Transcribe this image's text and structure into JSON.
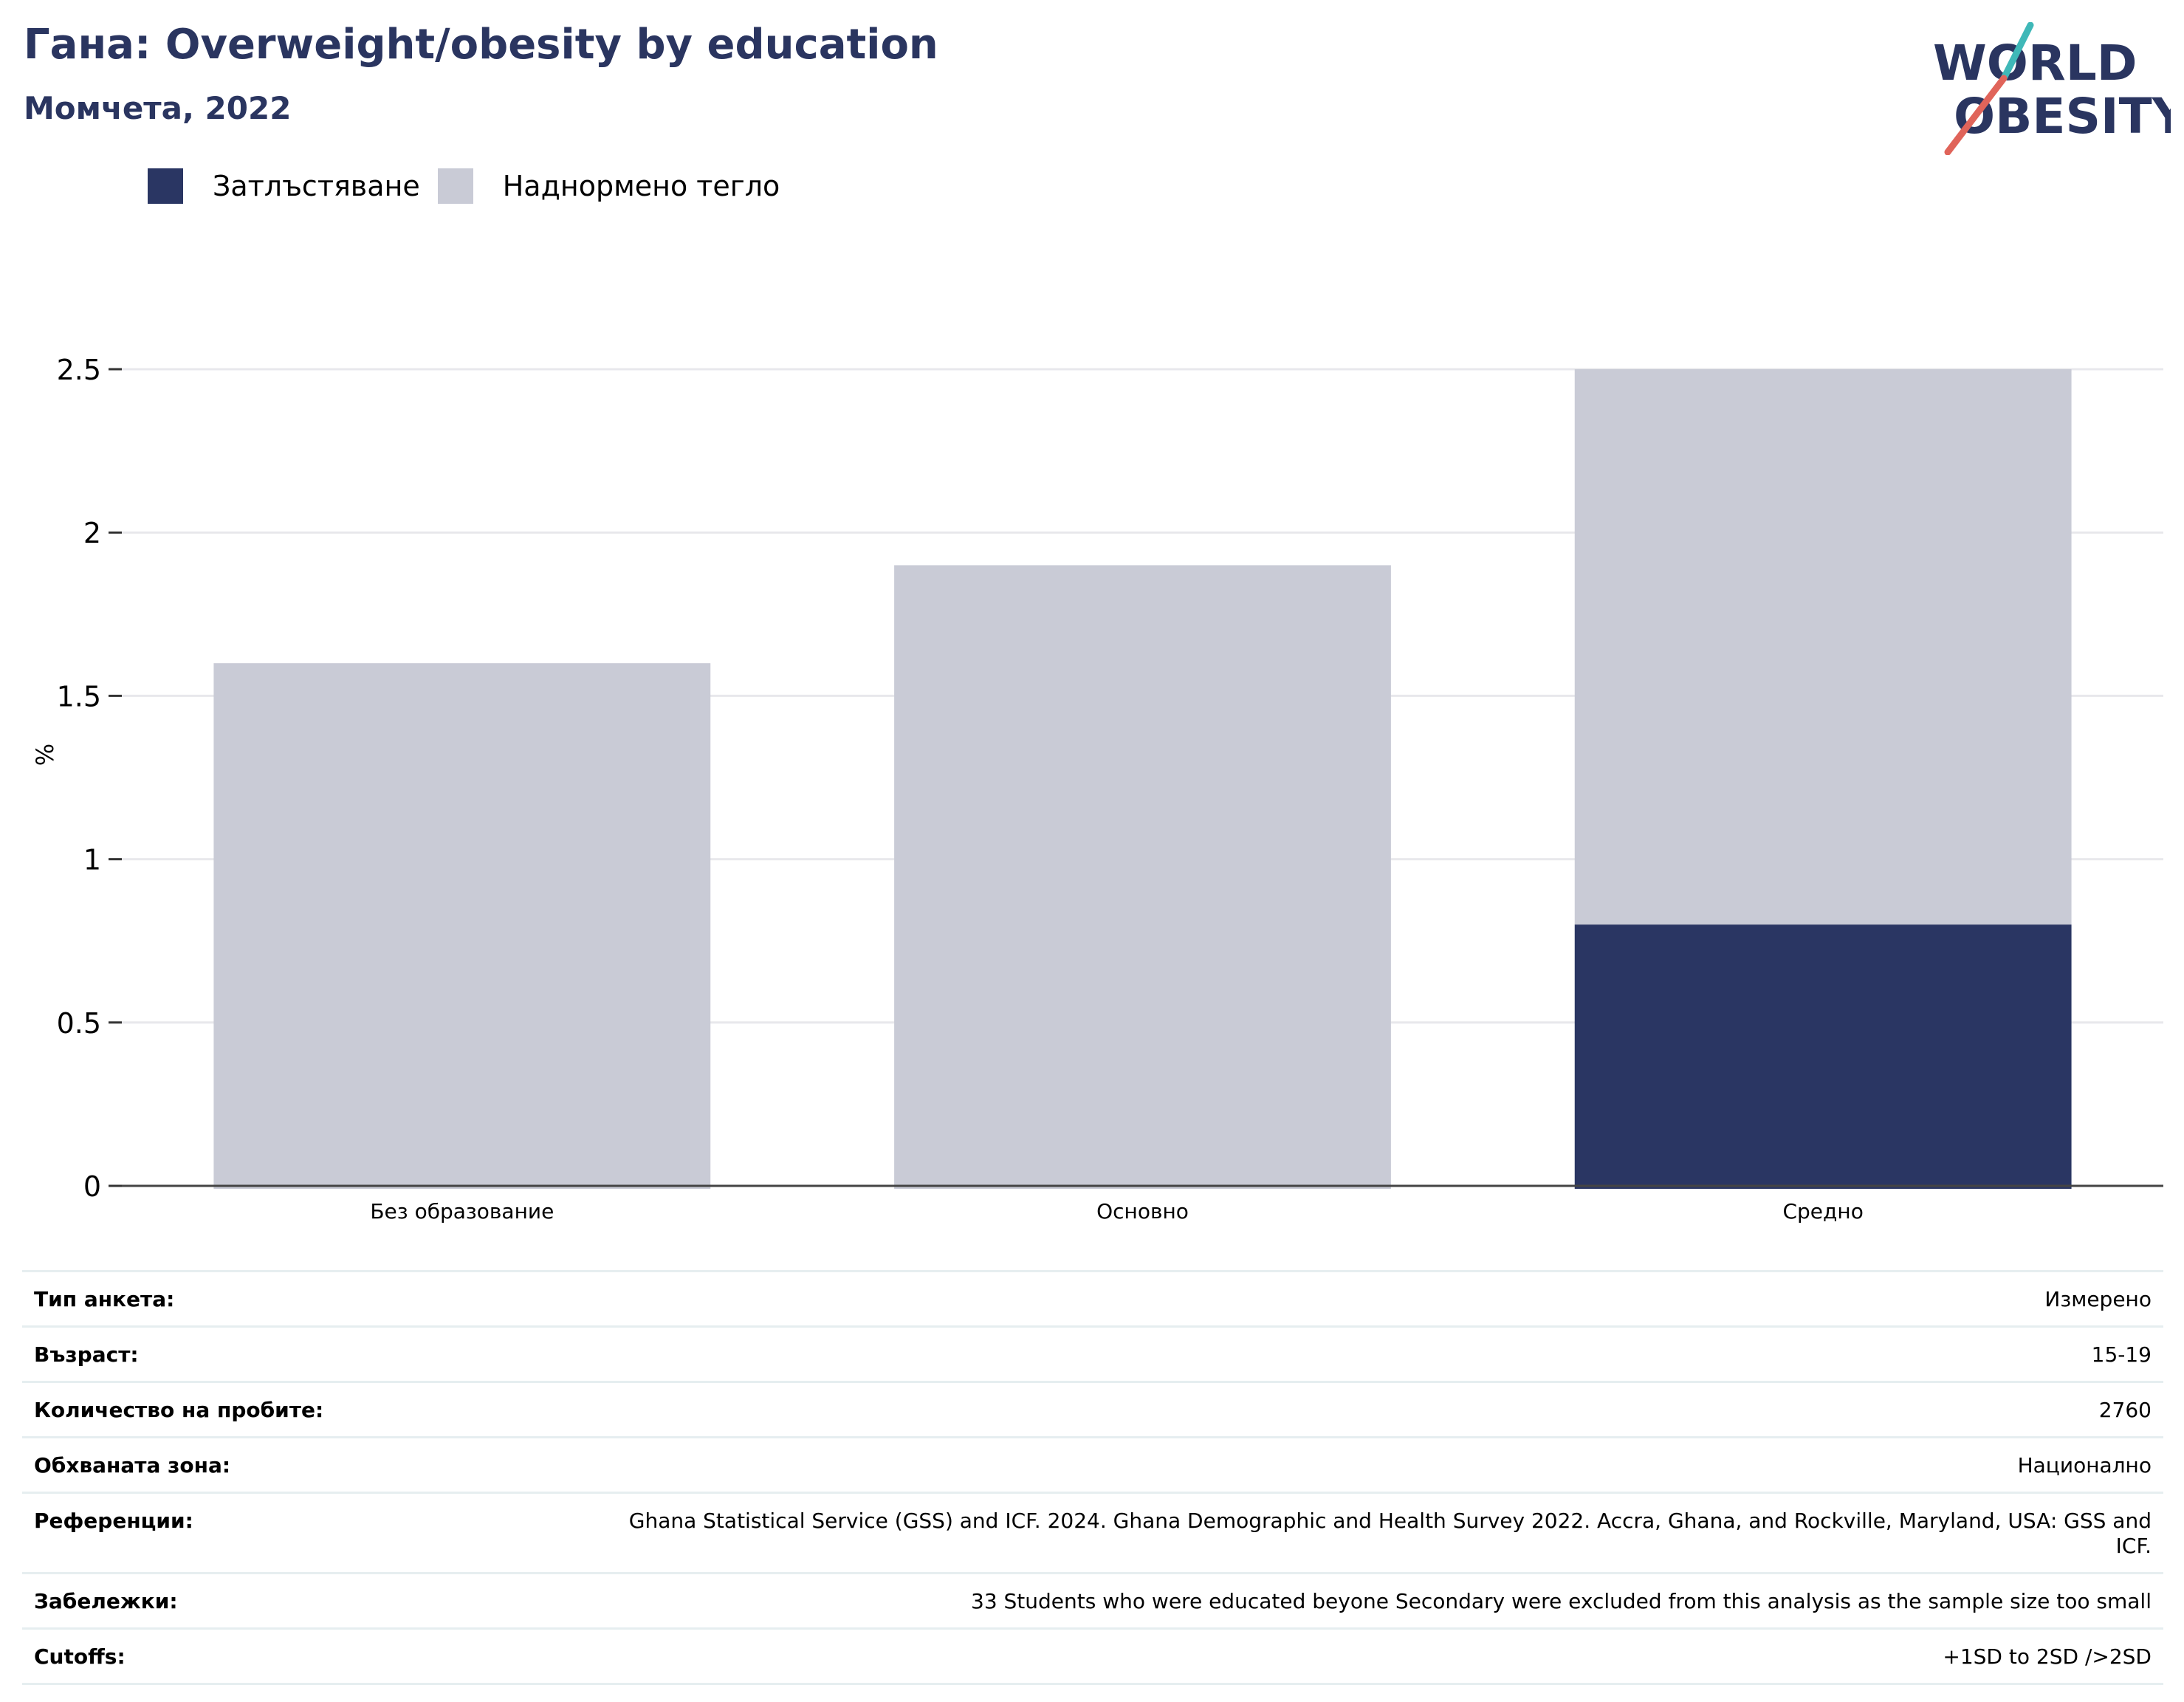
{
  "header": {
    "title": "Гана: Overweight/obesity by education",
    "subtitle": "Момчета, 2022",
    "logo_line1": "WORLD",
    "logo_line2": "OBESITY"
  },
  "colors": {
    "obesity": "#2a3663",
    "overweight": "#c9cbd6",
    "title": "#2a3560",
    "logo_teal": "#3fb8b8",
    "logo_red": "#e0645a"
  },
  "chart_data": {
    "type": "bar",
    "stacked": true,
    "categories": [
      "Без образование",
      "Основно",
      "Средно"
    ],
    "series": [
      {
        "name": "Затлъстяване",
        "values": [
          0,
          0,
          0.8
        ]
      },
      {
        "name": "Наднормено тегло",
        "values": [
          1.6,
          1.9,
          1.7
        ]
      }
    ],
    "ylabel": "%",
    "ylim": [
      0,
      2.5
    ],
    "yticks": [
      {
        "value": 0,
        "label": "0"
      },
      {
        "value": 0.5,
        "label": "0.5"
      },
      {
        "value": 1,
        "label": "1"
      },
      {
        "value": 1.5,
        "label": "1.5"
      },
      {
        "value": 2,
        "label": "2"
      },
      {
        "value": 2.5,
        "label": "2.5"
      }
    ],
    "grid": true,
    "legend_position": "top-left"
  },
  "info": [
    {
      "label": "Тип анкета:",
      "value": "Измерено"
    },
    {
      "label": "Възраст:",
      "value": "15-19"
    },
    {
      "label": "Количество на пробите:",
      "value": "2760"
    },
    {
      "label": "Обхваната зона:",
      "value": "Национално"
    },
    {
      "label": "Референции:",
      "value": "Ghana Statistical Service (GSS) and ICF. 2024. Ghana Demographic and Health Survey 2022. Accra, Ghana, and Rockville, Maryland, USA: GSS and ICF."
    },
    {
      "label": "Забележки:",
      "value": "33 Students who were educated beyone Secondary were excluded from this analysis as the sample size too small"
    },
    {
      "label": "Cutoffs:",
      "value": "+1SD to 2SD />2SD"
    }
  ]
}
